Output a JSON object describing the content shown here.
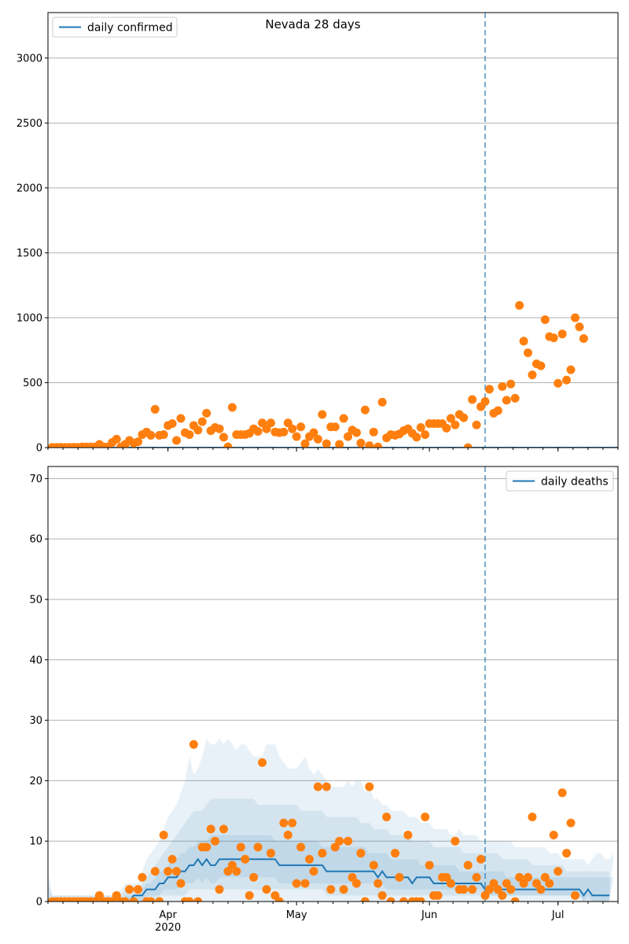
{
  "figure_title": "Nevada 28 days",
  "colors": {
    "line": "#1f77b4",
    "points": "#ff7f0e",
    "band": "#1f77b4",
    "grid": "#b0b0b0",
    "vline": "#1f77b4"
  },
  "x_axis": {
    "labels": [
      "Apr",
      "May",
      "Jun",
      "Jul"
    ],
    "year_label": "2020",
    "label_dates": [
      "2020-04-01",
      "2020-05-01",
      "2020-06-01",
      "2020-07-01"
    ],
    "range": [
      "2020-03-04",
      "2020-07-15"
    ]
  },
  "chart_data": [
    {
      "type": "scatter",
      "title": "Nevada 28 days",
      "legend": "daily confirmed",
      "legend_position": "top-left",
      "grid": "horizontal",
      "ylim": [
        0,
        3350
      ],
      "yticks": [
        0,
        500,
        1000,
        1500,
        2000,
        2500,
        3000
      ],
      "forecast_start": "2020-06-14",
      "line_label": "daily confirmed",
      "line_values": [
        0
      ],
      "points": {
        "start": "2020-03-05",
        "values": [
          2,
          2,
          2,
          2,
          2,
          2,
          2,
          5,
          5,
          5,
          5,
          25,
          5,
          5,
          40,
          65,
          5,
          25,
          55,
          35,
          45,
          100,
          120,
          95,
          295,
          95,
          100,
          170,
          185,
          55,
          225,
          115,
          100,
          170,
          135,
          200,
          265,
          130,
          155,
          145,
          80,
          5,
          310,
          100,
          100,
          100,
          110,
          145,
          125,
          190,
          145,
          190,
          120,
          115,
          120,
          190,
          145,
          85,
          160,
          30,
          85,
          115,
          65,
          255,
          30,
          160,
          160,
          25,
          225,
          85,
          135,
          115,
          35,
          290,
          15,
          120,
          5,
          350,
          75,
          100,
          95,
          105,
          130,
          145,
          110,
          80,
          155,
          100,
          185,
          185,
          185,
          185,
          150,
          225,
          175,
          255,
          230,
          0,
          370,
          175,
          315,
          355,
          450,
          265,
          285,
          470,
          365,
          490,
          380,
          1095,
          820,
          730,
          560,
          645,
          630,
          985,
          855,
          845,
          495,
          875,
          520,
          600,
          1000,
          930,
          840
        ]
      }
    },
    {
      "type": "scatter",
      "legend": "daily deaths",
      "legend_position": "top-right",
      "grid": "horizontal",
      "ylim": [
        0,
        72
      ],
      "yticks": [
        0,
        10,
        20,
        30,
        40,
        50,
        60,
        70
      ],
      "forecast_start": "2020-06-14",
      "line_label": "daily deaths",
      "line": {
        "start": "2020-03-04",
        "values": [
          0,
          0,
          0,
          0,
          0,
          0,
          0,
          0,
          0,
          0,
          0,
          0,
          0,
          0,
          0,
          0,
          0,
          0,
          0,
          0,
          1,
          1,
          1,
          2,
          2,
          2,
          3,
          3,
          4,
          4,
          4,
          5,
          5,
          6,
          6,
          7,
          6,
          7,
          6,
          6,
          7,
          7,
          7,
          7,
          7,
          7,
          7,
          7,
          7,
          7,
          7,
          7,
          7,
          7,
          6,
          6,
          6,
          6,
          6,
          6,
          6,
          6,
          6,
          6,
          6,
          5,
          5,
          5,
          5,
          5,
          5,
          5,
          5,
          5,
          5,
          5,
          5,
          4,
          5,
          4,
          4,
          4,
          4,
          4,
          4,
          3,
          4,
          4,
          4,
          4,
          3,
          3,
          3,
          3,
          3,
          3,
          3,
          3,
          3,
          3,
          3,
          3,
          2,
          2,
          2,
          2,
          2,
          2,
          2,
          2,
          2,
          2,
          2,
          2,
          2,
          2,
          2,
          2,
          2,
          2,
          2,
          2,
          2,
          2,
          2,
          1,
          2,
          1,
          1,
          1,
          1,
          1
        ]
      },
      "bands": {
        "start": "2020-03-04",
        "outer_upper": [
          5,
          1,
          1,
          1,
          1,
          1,
          1,
          1,
          1,
          1,
          1,
          1,
          1,
          1,
          1,
          1,
          1,
          2,
          3,
          3,
          3,
          3,
          5,
          7,
          8,
          9,
          10,
          12,
          14,
          15,
          16,
          18,
          20,
          24,
          21,
          22,
          24,
          27,
          26,
          26,
          27,
          26,
          27,
          26,
          25,
          26,
          26,
          25,
          24,
          24,
          24,
          26,
          26,
          26,
          24,
          23,
          22,
          22,
          22,
          23,
          24,
          22,
          21,
          22,
          21,
          20,
          19,
          19,
          19,
          19,
          20,
          19,
          20,
          20,
          18,
          19,
          17,
          17,
          16,
          16,
          15,
          15,
          15,
          15,
          14,
          14,
          14,
          13,
          13,
          13,
          12,
          12,
          12,
          12,
          11,
          11,
          12,
          11,
          11,
          11,
          11,
          10,
          10,
          10,
          10,
          10,
          10,
          10,
          10,
          9,
          9,
          9,
          9,
          9,
          9,
          9,
          9,
          8,
          8,
          8,
          7,
          7,
          7,
          7,
          7,
          7,
          6,
          7,
          8,
          8,
          7,
          7,
          8
        ],
        "mid_upper": [
          3,
          1,
          1,
          1,
          1,
          1,
          1,
          1,
          1,
          1,
          1,
          1,
          1,
          1,
          1,
          1,
          1,
          1,
          2,
          2,
          2,
          2,
          3,
          4,
          5,
          6,
          7,
          8,
          9,
          10,
          11,
          12,
          13,
          14,
          15,
          15,
          15,
          16,
          17,
          17,
          17,
          17,
          17,
          17,
          17,
          17,
          17,
          17,
          17,
          16,
          16,
          16,
          16,
          16,
          16,
          16,
          16,
          16,
          16,
          15,
          15,
          15,
          15,
          15,
          15,
          14,
          14,
          14,
          14,
          14,
          14,
          14,
          14,
          13,
          13,
          13,
          12,
          12,
          12,
          12,
          11,
          11,
          11,
          11,
          11,
          10,
          10,
          10,
          10,
          10,
          9,
          9,
          9,
          9,
          9,
          9,
          9,
          8,
          8,
          8,
          8,
          8,
          8,
          8,
          8,
          8,
          7,
          7,
          7,
          7,
          7,
          7,
          7,
          6,
          6,
          6,
          6,
          6,
          6,
          6,
          6,
          5,
          5,
          5,
          5,
          5,
          5,
          5,
          5,
          5,
          5,
          5
        ],
        "inner_upper": [
          1,
          0,
          0,
          0,
          0,
          0,
          0,
          0,
          0,
          0,
          0,
          0,
          0,
          0,
          0,
          0,
          0,
          0,
          1,
          1,
          1,
          1,
          2,
          3,
          3,
          4,
          5,
          5,
          6,
          7,
          7,
          8,
          8,
          9,
          9,
          10,
          10,
          10,
          11,
          11,
          11,
          11,
          11,
          11,
          11,
          11,
          11,
          11,
          11,
          11,
          11,
          11,
          11,
          10,
          10,
          10,
          10,
          10,
          10,
          10,
          10,
          10,
          10,
          10,
          9,
          9,
          9,
          9,
          9,
          9,
          9,
          9,
          9,
          9,
          9,
          8,
          8,
          8,
          8,
          8,
          7,
          7,
          7,
          7,
          7,
          7,
          7,
          6,
          6,
          6,
          6,
          6,
          6,
          6,
          6,
          6,
          5,
          5,
          5,
          5,
          5,
          5,
          5,
          5,
          5,
          5,
          5,
          4,
          4,
          4,
          4,
          4,
          4,
          4,
          4,
          4,
          4,
          4,
          4,
          4,
          4,
          4,
          4,
          4,
          4,
          4,
          4,
          4,
          4,
          4,
          4,
          4,
          4
        ],
        "inner_lower": [
          0,
          0,
          0,
          0,
          0,
          0,
          0,
          0,
          0,
          0,
          0,
          0,
          0,
          0,
          0,
          0,
          0,
          0,
          0,
          0,
          0,
          0,
          0,
          1,
          1,
          1,
          1,
          2,
          2,
          2,
          2,
          3,
          3,
          3,
          3,
          4,
          3,
          4,
          3,
          3,
          4,
          4,
          4,
          4,
          4,
          4,
          4,
          4,
          4,
          4,
          4,
          4,
          4,
          4,
          3,
          3,
          3,
          3,
          3,
          3,
          3,
          3,
          3,
          3,
          3,
          3,
          3,
          3,
          3,
          3,
          3,
          3,
          3,
          3,
          3,
          3,
          3,
          2,
          3,
          2,
          2,
          2,
          2,
          2,
          2,
          2,
          2,
          2,
          2,
          2,
          2,
          2,
          2,
          2,
          2,
          2,
          2,
          2,
          2,
          2,
          2,
          2,
          1,
          1,
          1,
          1,
          1,
          1,
          1,
          1,
          1,
          1,
          1,
          1,
          1,
          1,
          1,
          1,
          1,
          1,
          1,
          1,
          1,
          1,
          1,
          0,
          1,
          0,
          0,
          0,
          0,
          0
        ],
        "mid_lower": [
          0,
          0,
          0,
          0,
          0,
          0,
          0,
          0,
          0,
          0,
          0,
          0,
          0,
          0,
          0,
          0,
          0,
          0,
          0,
          0,
          0,
          0,
          0,
          0,
          0,
          0,
          1,
          1,
          1,
          1,
          1,
          1,
          1,
          2,
          2,
          2,
          2,
          2,
          2,
          2,
          2,
          2,
          2,
          2,
          2,
          2,
          2,
          2,
          2,
          2,
          2,
          2,
          2,
          2,
          2,
          2,
          2,
          2,
          2,
          2,
          2,
          2,
          2,
          2,
          2,
          1,
          1,
          1,
          1,
          1,
          1,
          1,
          1,
          1,
          1,
          1,
          1,
          1,
          1,
          1,
          1,
          1,
          1,
          1,
          1,
          1,
          1,
          1,
          1,
          1,
          1,
          1,
          1,
          1,
          1,
          1,
          1,
          1,
          1,
          1,
          1,
          1,
          1,
          1,
          1,
          1,
          1,
          1,
          1,
          1,
          1,
          1,
          1,
          1,
          1,
          1,
          1,
          1,
          1,
          1,
          1,
          1,
          1,
          1,
          1,
          0,
          0,
          0,
          0,
          0,
          0,
          0
        ]
      },
      "points": {
        "start": "2020-03-05",
        "values": [
          0,
          0,
          0,
          0,
          0,
          0,
          0,
          0,
          0,
          0,
          0,
          1,
          0,
          0,
          0,
          1,
          0,
          0,
          2,
          0,
          2,
          4,
          0,
          0,
          5,
          0,
          11,
          5,
          7,
          5,
          3,
          0,
          0,
          26,
          0,
          9,
          9,
          12,
          10,
          2,
          12,
          5,
          6,
          5,
          9,
          7,
          1,
          4,
          9,
          23,
          2,
          8,
          1,
          0,
          13,
          11,
          13,
          3,
          9,
          3,
          7,
          5,
          19,
          8,
          19,
          2,
          9,
          10,
          2,
          10,
          4,
          3,
          8,
          0,
          19,
          6,
          3,
          1,
          14,
          0,
          8,
          4,
          0,
          11,
          0,
          0,
          0,
          14,
          6,
          1,
          1,
          4,
          4,
          3,
          10,
          2,
          2,
          6,
          2,
          4,
          7,
          1,
          2,
          3,
          2,
          1,
          3,
          2,
          0,
          4,
          3,
          4,
          14,
          3,
          2,
          4,
          3,
          11,
          5,
          18,
          8,
          13,
          1
        ]
      }
    }
  ]
}
